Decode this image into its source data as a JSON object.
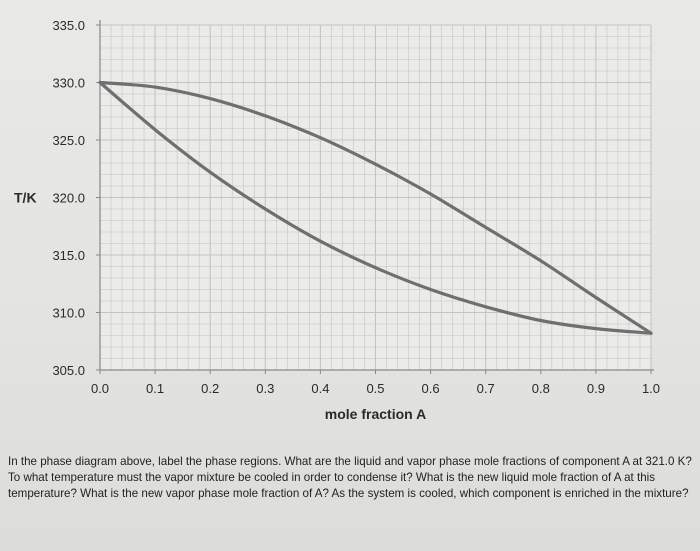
{
  "chart_data": {
    "type": "line",
    "title": "",
    "xlabel": "mole fraction A",
    "ylabel": "T/K",
    "xlim": [
      0.0,
      1.0
    ],
    "ylim": [
      305.0,
      335.0
    ],
    "xticks": [
      "0.0",
      "0.1",
      "0.2",
      "0.3",
      "0.4",
      "0.5",
      "0.6",
      "0.7",
      "0.8",
      "0.9",
      "1.0"
    ],
    "yticks": [
      "305.0",
      "310.0",
      "315.0",
      "320.0",
      "325.0",
      "330.0",
      "335.0"
    ],
    "grid": true,
    "series": [
      {
        "x": [
          0.0,
          0.1,
          0.2,
          0.3,
          0.4,
          0.5,
          0.6,
          0.7,
          0.8,
          0.9,
          1.0
        ],
        "y": [
          330.0,
          329.6,
          328.6,
          327.1,
          325.2,
          322.9,
          320.3,
          317.4,
          314.5,
          311.3,
          308.2
        ]
      },
      {
        "x": [
          0.0,
          0.1,
          0.2,
          0.3,
          0.4,
          0.5,
          0.6,
          0.7,
          0.8,
          0.9,
          1.0
        ],
        "y": [
          330.0,
          325.9,
          322.2,
          319.0,
          316.2,
          313.9,
          312.0,
          310.5,
          309.3,
          308.6,
          308.2
        ]
      }
    ]
  },
  "colors": {
    "curve": "#6f6f6f",
    "grid": "#c4c4c2",
    "axis": "#8a8a8a"
  },
  "question": "In the phase diagram above, label the phase regions. What are the liquid and vapor phase mole fractions of component A at 321.0 K? To what temperature must the vapor mixture be cooled in order to condense it? What is the new liquid mole fraction of A at this temperature? What is the new vapor phase mole fraction of A? As the system is cooled, which component is enriched in the mixture?"
}
